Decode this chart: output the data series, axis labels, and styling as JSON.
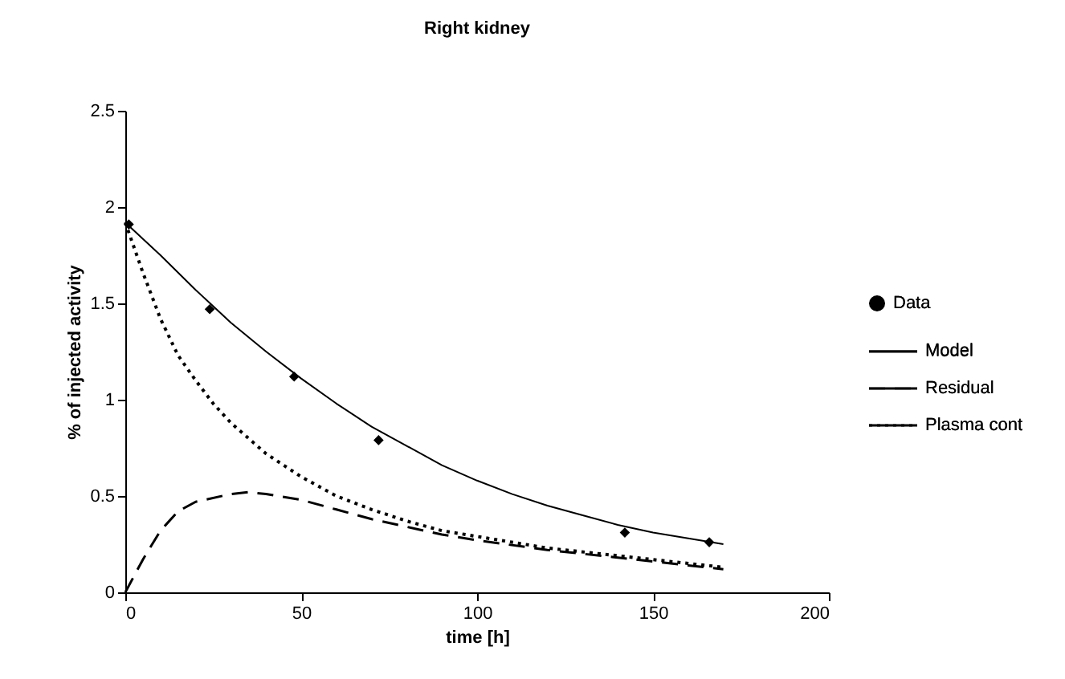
{
  "chart_data": {
    "type": "line",
    "title": "Right kidney",
    "xlabel": "time [h]",
    "ylabel": "% of injected activity",
    "xlim": [
      0,
      200
    ],
    "xticks": [
      0,
      50,
      100,
      150,
      200
    ],
    "ylim": [
      0,
      2.5
    ],
    "yticks": [
      0,
      0.5,
      1,
      1.5,
      2,
      2.5
    ],
    "grid": false,
    "legend": "right",
    "series": [
      {
        "name": "Data",
        "type": "scatter",
        "marker": "diamond",
        "color": "#000000",
        "x": [
          1,
          24,
          48,
          72,
          142,
          166
        ],
        "values": [
          1.91,
          1.47,
          1.12,
          0.79,
          0.31,
          0.26
        ]
      },
      {
        "name": "Model",
        "line_style": "solid",
        "color": "#000000",
        "x": [
          0,
          10,
          20,
          30,
          40,
          50,
          60,
          70,
          80,
          90,
          100,
          110,
          120,
          130,
          140,
          150,
          160,
          170
        ],
        "values": [
          1.92,
          1.75,
          1.57,
          1.4,
          1.25,
          1.11,
          0.98,
          0.86,
          0.76,
          0.66,
          0.58,
          0.51,
          0.45,
          0.4,
          0.35,
          0.31,
          0.28,
          0.25
        ]
      },
      {
        "name": "Residual",
        "line_style": "dashed",
        "color": "#000000",
        "x": [
          0,
          5,
          10,
          15,
          20,
          30,
          35,
          40,
          50,
          60,
          70,
          80,
          90,
          100,
          120,
          140,
          160,
          170
        ],
        "values": [
          0,
          0.17,
          0.32,
          0.42,
          0.47,
          0.51,
          0.52,
          0.51,
          0.48,
          0.43,
          0.38,
          0.34,
          0.3,
          0.27,
          0.22,
          0.18,
          0.14,
          0.12
        ]
      },
      {
        "name": "Plasma cont",
        "line_style": "dotted",
        "color": "#000000",
        "x": [
          0,
          5,
          10,
          15,
          20,
          25,
          30,
          35,
          40,
          50,
          60,
          70,
          80,
          90,
          100,
          120,
          140,
          160,
          170
        ],
        "values": [
          1.92,
          1.66,
          1.42,
          1.23,
          1.1,
          0.98,
          0.88,
          0.8,
          0.72,
          0.6,
          0.5,
          0.43,
          0.37,
          0.32,
          0.29,
          0.23,
          0.19,
          0.15,
          0.13
        ]
      }
    ]
  }
}
